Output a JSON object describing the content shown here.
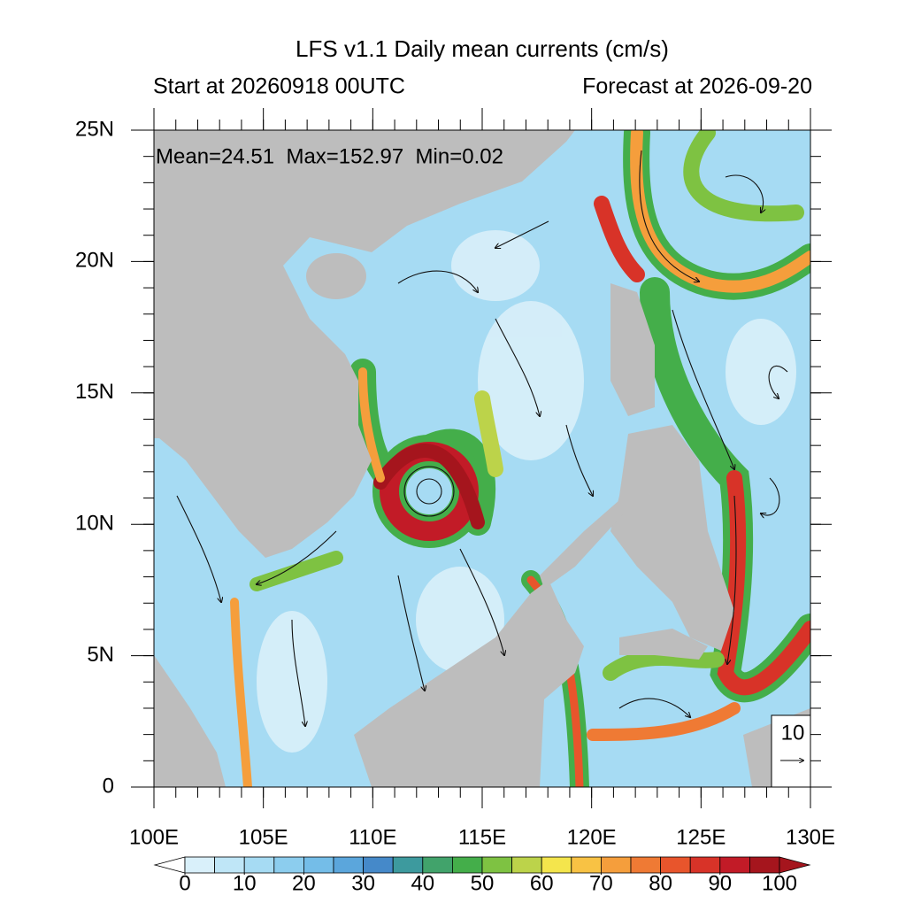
{
  "chart_data": {
    "type": "map",
    "title": "LFS v1.1 Daily mean currents (cm/s)",
    "subtitle_left": "Start at 20260918 00UTC",
    "subtitle_right": "Forecast at 2026-09-20",
    "annotation": "Mean=24.51  Max=152.97  Min=0.02",
    "xlim": [
      100,
      130
    ],
    "ylim": [
      0,
      25
    ],
    "xticks": [
      {
        "value": 100,
        "label": "100E"
      },
      {
        "value": 105,
        "label": "105E"
      },
      {
        "value": 110,
        "label": "110E"
      },
      {
        "value": 115,
        "label": "115E"
      },
      {
        "value": 120,
        "label": "120E"
      },
      {
        "value": 125,
        "label": "125E"
      },
      {
        "value": 130,
        "label": "130E"
      }
    ],
    "yticks": [
      0,
      {
        "value": 5,
        "label": "5N"
      },
      {
        "value": 10,
        "label": "10N"
      },
      {
        "value": 15,
        "label": "15N"
      },
      {
        "value": 20,
        "label": "20N"
      },
      {
        "value": 25,
        "label": "25N"
      }
    ],
    "minor_tick_step": 1,
    "colorbar": {
      "range": [
        0,
        100
      ],
      "ticks": [
        0,
        10,
        20,
        30,
        40,
        50,
        60,
        70,
        80,
        90,
        100
      ],
      "colors": [
        "#d9f0fa",
        "#bfe6f7",
        "#a6dbf3",
        "#8ccdee",
        "#74bde8",
        "#5ba6dc",
        "#4589c9",
        "#3d9a9e",
        "#41a36b",
        "#44ae4a",
        "#7ec242",
        "#bcd34a",
        "#f4e54c",
        "#f8c244",
        "#f59e3c",
        "#ef7a34",
        "#e8552c",
        "#d83328",
        "#c21b27",
        "#a5151d"
      ],
      "under_color": "#ffffff",
      "over_color": "#a5151d"
    },
    "reference_vector": 10
  }
}
